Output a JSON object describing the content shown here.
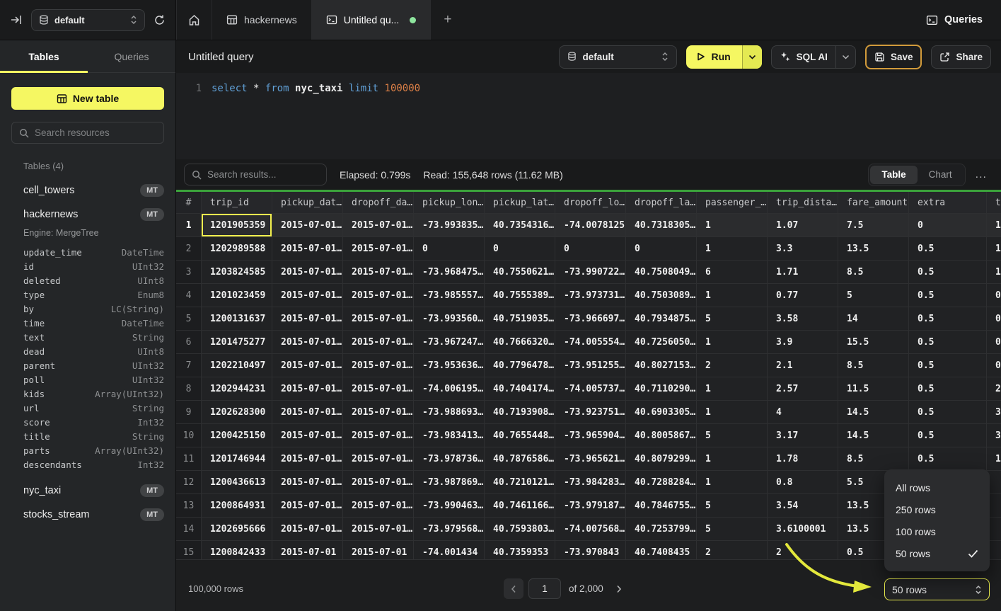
{
  "colors": {
    "accent_yellow": "#f5f762",
    "result_green_bar": "#3ba33b",
    "tab_active_dot": "#8ee59e",
    "save_highlight_border": "#d29b3b",
    "selected_cell_border": "#f3f14e",
    "sql_keyword": "#61a1d8",
    "sql_number": "#dd8047"
  },
  "icons": {
    "collapse-sidebar": "arrow-to-bar",
    "database": "cylinder",
    "refresh": "circular-arrow",
    "home": "house",
    "table": "grid",
    "console": "terminal-window",
    "plus": "+",
    "play": "triangle",
    "sparkles": "four-point-stars",
    "save": "floppy",
    "share": "box-arrow-up-right",
    "search": "magnifier",
    "select-chevrons": "up-down-chevrons",
    "dropdown-chevron": "chevron-down",
    "check": "checkmark",
    "ellipsis": "...",
    "prev": "chevron-left",
    "next": "chevron-right"
  },
  "sidebar": {
    "database_select": "default",
    "tabs": {
      "tables": "Tables",
      "queries": "Queries"
    },
    "new_table_label": "New table",
    "search_placeholder": "Search resources",
    "section_label": "Tables (4)",
    "tables": [
      {
        "name": "cell_towers",
        "badge": "MT"
      },
      {
        "name": "hackernews",
        "badge": "MT",
        "engine": "Engine: MergeTree",
        "columns": [
          {
            "name": "update_time",
            "type": "DateTime"
          },
          {
            "name": "id",
            "type": "UInt32"
          },
          {
            "name": "deleted",
            "type": "UInt8"
          },
          {
            "name": "type",
            "type": "Enum8"
          },
          {
            "name": "by",
            "type": "LC(String)"
          },
          {
            "name": "time",
            "type": "DateTime"
          },
          {
            "name": "text",
            "type": "String"
          },
          {
            "name": "dead",
            "type": "UInt8"
          },
          {
            "name": "parent",
            "type": "UInt32"
          },
          {
            "name": "poll",
            "type": "UInt32"
          },
          {
            "name": "kids",
            "type": "Array(UInt32)"
          },
          {
            "name": "url",
            "type": "String"
          },
          {
            "name": "score",
            "type": "Int32"
          },
          {
            "name": "title",
            "type": "String"
          },
          {
            "name": "parts",
            "type": "Array(UInt32)"
          },
          {
            "name": "descendants",
            "type": "Int32"
          }
        ]
      },
      {
        "name": "nyc_taxi",
        "badge": "MT"
      },
      {
        "name": "stocks_stream",
        "badge": "MT"
      }
    ]
  },
  "tabstrip": {
    "hackernews_tab": "hackernews",
    "active_tab": "Untitled qu...",
    "plus": "+",
    "queries_label": "Queries"
  },
  "toolbar": {
    "title": "Untitled query",
    "database_select": "default",
    "run_label": "Run",
    "sql_ai_label": "SQL AI",
    "save_label": "Save",
    "share_label": "Share"
  },
  "editor": {
    "line_number": "1",
    "tokens": [
      {
        "t": "select",
        "c": "kw"
      },
      {
        "t": "*",
        "c": "op"
      },
      {
        "t": "from",
        "c": "kw"
      },
      {
        "t": "nyc_taxi",
        "c": "id"
      },
      {
        "t": "limit",
        "c": "kw"
      },
      {
        "t": "100000",
        "c": "num"
      }
    ]
  },
  "results": {
    "search_placeholder": "Search results...",
    "elapsed": "Elapsed: 0.799s",
    "read": "Read: 155,648 rows (11.62 MB)",
    "view_toggle": {
      "table": "Table",
      "chart": "Chart",
      "active": "Table"
    },
    "ellipsis_menu": "...",
    "table": {
      "columns": [
        "#",
        "trip_id",
        "pickup_dat…",
        "dropoff_da…",
        "pickup_lon…",
        "pickup_lat…",
        "dropoff_lo…",
        "dropoff_la…",
        "passenger_…",
        "trip_dista…",
        "fare_amount",
        "extra",
        "t"
      ],
      "rows": [
        {
          "n": "1",
          "cells": [
            "1201905359",
            "2015-07-01…",
            "2015-07-01…",
            "-73.993835…",
            "40.7354316…",
            "-74.0078125",
            "40.7318305…",
            "1",
            "1.07",
            "7.5",
            "0",
            "1"
          ]
        },
        {
          "n": "2",
          "cells": [
            "1202989588",
            "2015-07-01…",
            "2015-07-01…",
            "0",
            "0",
            "0",
            "0",
            "1",
            "3.3",
            "13.5",
            "0.5",
            "1"
          ]
        },
        {
          "n": "3",
          "cells": [
            "1203824585",
            "2015-07-01…",
            "2015-07-01…",
            "-73.968475…",
            "40.7550621…",
            "-73.990722…",
            "40.7508049…",
            "6",
            "1.71",
            "8.5",
            "0.5",
            "1"
          ]
        },
        {
          "n": "4",
          "cells": [
            "1201023459",
            "2015-07-01…",
            "2015-07-01…",
            "-73.985557…",
            "40.7555389…",
            "-73.973731…",
            "40.7503089…",
            "1",
            "0.77",
            "5",
            "0.5",
            "0"
          ]
        },
        {
          "n": "5",
          "cells": [
            "1200131637",
            "2015-07-01…",
            "2015-07-01…",
            "-73.993560…",
            "40.7519035…",
            "-73.966697…",
            "40.7934875…",
            "5",
            "3.58",
            "14",
            "0.5",
            "0"
          ]
        },
        {
          "n": "6",
          "cells": [
            "1201475277",
            "2015-07-01…",
            "2015-07-01…",
            "-73.967247…",
            "40.7666320…",
            "-74.005554…",
            "40.7256050…",
            "1",
            "3.9",
            "15.5",
            "0.5",
            "0"
          ]
        },
        {
          "n": "7",
          "cells": [
            "1202210497",
            "2015-07-01…",
            "2015-07-01…",
            "-73.953636…",
            "40.7796478…",
            "-73.951255…",
            "40.8027153…",
            "2",
            "2.1",
            "8.5",
            "0.5",
            "0"
          ]
        },
        {
          "n": "8",
          "cells": [
            "1202944231",
            "2015-07-01…",
            "2015-07-01…",
            "-74.006195…",
            "40.7404174…",
            "-74.005737…",
            "40.7110290…",
            "1",
            "2.57",
            "11.5",
            "0.5",
            "2"
          ]
        },
        {
          "n": "9",
          "cells": [
            "1202628300",
            "2015-07-01…",
            "2015-07-01…",
            "-73.988693…",
            "40.7193908…",
            "-73.923751…",
            "40.6903305…",
            "1",
            "4",
            "14.5",
            "0.5",
            "3"
          ]
        },
        {
          "n": "10",
          "cells": [
            "1200425150",
            "2015-07-01…",
            "2015-07-01…",
            "-73.983413…",
            "40.7655448…",
            "-73.965904…",
            "40.8005867…",
            "5",
            "3.17",
            "14.5",
            "0.5",
            "3"
          ]
        },
        {
          "n": "11",
          "cells": [
            "1201746944",
            "2015-07-01…",
            "2015-07-01…",
            "-73.978736…",
            "40.7876586…",
            "-73.965621…",
            "40.8079299…",
            "1",
            "1.78",
            "8.5",
            "0.5",
            "1"
          ]
        },
        {
          "n": "12",
          "cells": [
            "1200436613",
            "2015-07-01…",
            "2015-07-01…",
            "-73.987869…",
            "40.7210121…",
            "-73.984283…",
            "40.7288284…",
            "1",
            "0.8",
            "5.5",
            "",
            ""
          ]
        },
        {
          "n": "13",
          "cells": [
            "1200864931",
            "2015-07-01…",
            "2015-07-01…",
            "-73.990463…",
            "40.7461166…",
            "-73.979187…",
            "40.7846755…",
            "5",
            "3.54",
            "13.5",
            "",
            ""
          ]
        },
        {
          "n": "14",
          "cells": [
            "1202695666",
            "2015-07-01…",
            "2015-07-01…",
            "-73.979568…",
            "40.7593803…",
            "-74.007568…",
            "40.7253799…",
            "5",
            "3.6100001",
            "13.5",
            "",
            ""
          ]
        },
        {
          "n": "15",
          "cells": [
            "1200842433",
            "2015-07-01",
            "2015-07-01",
            "-74.001434",
            "40.7359353",
            "-73.970843",
            "40.7408435",
            "2",
            "2",
            "0.5",
            "",
            ""
          ]
        }
      ]
    },
    "footer": {
      "total": "100,000 rows",
      "page": "1",
      "of_label": "of 2,000",
      "page_size": "50 rows"
    }
  },
  "popup": {
    "items": [
      {
        "label": "All rows",
        "checked": false
      },
      {
        "label": "250 rows",
        "checked": false
      },
      {
        "label": "100 rows",
        "checked": false
      },
      {
        "label": "50 rows",
        "checked": true
      }
    ]
  }
}
